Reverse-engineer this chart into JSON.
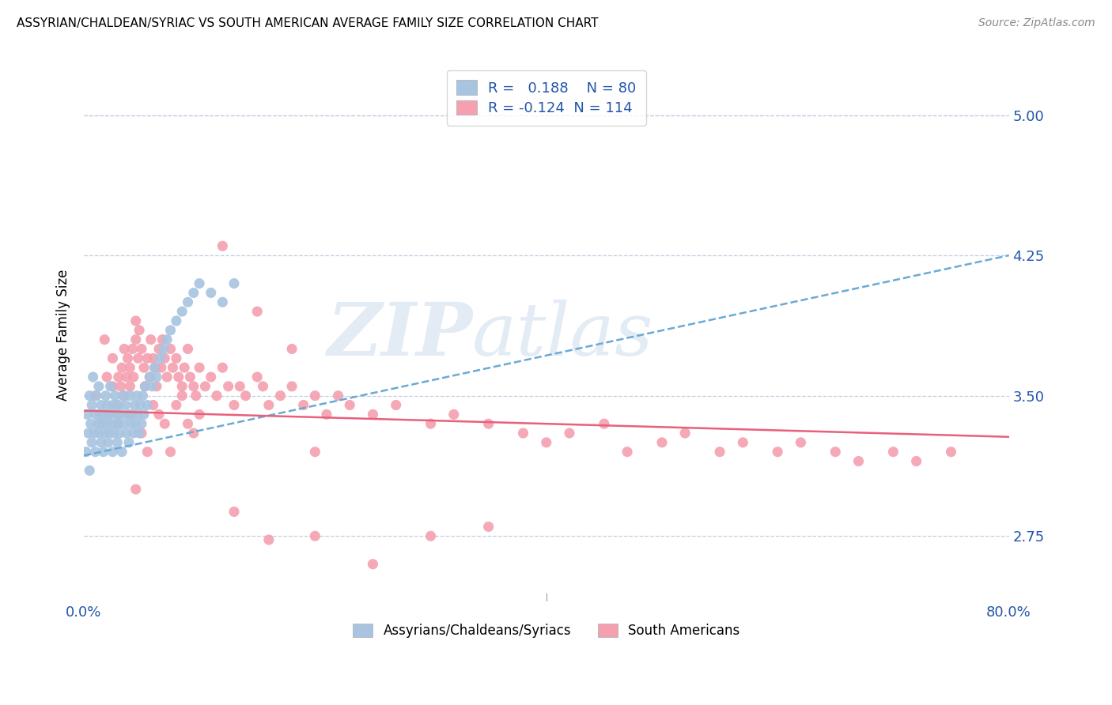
{
  "title": "ASSYRIAN/CHALDEAN/SYRIAC VS SOUTH AMERICAN AVERAGE FAMILY SIZE CORRELATION CHART",
  "source": "Source: ZipAtlas.com",
  "ylabel": "Average Family Size",
  "watermark": "ZIPatlas",
  "legend1_label": "Assyrians/Chaldeans/Syriacs",
  "legend2_label": "South Americans",
  "r1": 0.188,
  "n1": 80,
  "r2": -0.124,
  "n2": 114,
  "blue_color": "#a8c4e0",
  "pink_color": "#f4a0b0",
  "blue_line_color": "#6aaad4",
  "pink_line_color": "#e8607a",
  "right_yticks": [
    2.75,
    3.5,
    4.25,
    5.0
  ],
  "ylim": [
    2.4,
    5.25
  ],
  "xlim": [
    0.0,
    0.8
  ],
  "blue_trend_x": [
    0.0,
    0.8
  ],
  "blue_trend_y": [
    3.18,
    4.25
  ],
  "pink_trend_x": [
    0.0,
    0.8
  ],
  "pink_trend_y": [
    3.42,
    3.28
  ],
  "blue_scatter_x": [
    0.002,
    0.003,
    0.004,
    0.005,
    0.005,
    0.006,
    0.007,
    0.007,
    0.008,
    0.009,
    0.01,
    0.01,
    0.011,
    0.012,
    0.013,
    0.013,
    0.014,
    0.015,
    0.015,
    0.016,
    0.017,
    0.017,
    0.018,
    0.019,
    0.02,
    0.02,
    0.021,
    0.022,
    0.022,
    0.023,
    0.024,
    0.025,
    0.025,
    0.026,
    0.027,
    0.028,
    0.028,
    0.029,
    0.03,
    0.03,
    0.031,
    0.032,
    0.033,
    0.034,
    0.035,
    0.036,
    0.037,
    0.038,
    0.039,
    0.04,
    0.041,
    0.042,
    0.043,
    0.044,
    0.045,
    0.046,
    0.047,
    0.048,
    0.049,
    0.05,
    0.051,
    0.052,
    0.053,
    0.055,
    0.057,
    0.059,
    0.061,
    0.063,
    0.066,
    0.069,
    0.072,
    0.075,
    0.08,
    0.085,
    0.09,
    0.095,
    0.1,
    0.11,
    0.12,
    0.13
  ],
  "blue_scatter_y": [
    3.2,
    3.4,
    3.3,
    3.1,
    3.5,
    3.35,
    3.25,
    3.45,
    3.6,
    3.3,
    3.4,
    3.2,
    3.5,
    3.35,
    3.55,
    3.3,
    3.4,
    3.25,
    3.45,
    3.35,
    3.2,
    3.4,
    3.3,
    3.5,
    3.35,
    3.45,
    3.25,
    3.4,
    3.3,
    3.55,
    3.35,
    3.2,
    3.45,
    3.3,
    3.5,
    3.35,
    3.4,
    3.25,
    3.45,
    3.35,
    3.3,
    3.4,
    3.2,
    3.5,
    3.35,
    3.45,
    3.3,
    3.4,
    3.25,
    3.5,
    3.35,
    3.4,
    3.3,
    3.45,
    3.35,
    3.5,
    3.4,
    3.3,
    3.45,
    3.35,
    3.5,
    3.4,
    3.55,
    3.45,
    3.6,
    3.55,
    3.65,
    3.6,
    3.7,
    3.75,
    3.8,
    3.85,
    3.9,
    3.95,
    4.0,
    4.05,
    4.1,
    4.05,
    4.0,
    4.1
  ],
  "pink_scatter_x": [
    0.01,
    0.015,
    0.018,
    0.02,
    0.022,
    0.025,
    0.025,
    0.028,
    0.03,
    0.03,
    0.032,
    0.033,
    0.035,
    0.035,
    0.037,
    0.038,
    0.04,
    0.04,
    0.042,
    0.043,
    0.045,
    0.045,
    0.047,
    0.048,
    0.05,
    0.052,
    0.053,
    0.055,
    0.057,
    0.058,
    0.06,
    0.062,
    0.063,
    0.065,
    0.067,
    0.068,
    0.07,
    0.072,
    0.075,
    0.077,
    0.08,
    0.082,
    0.085,
    0.087,
    0.09,
    0.092,
    0.095,
    0.097,
    0.1,
    0.105,
    0.11,
    0.115,
    0.12,
    0.125,
    0.13,
    0.135,
    0.14,
    0.15,
    0.155,
    0.16,
    0.17,
    0.18,
    0.19,
    0.2,
    0.21,
    0.22,
    0.23,
    0.25,
    0.27,
    0.3,
    0.32,
    0.35,
    0.38,
    0.4,
    0.42,
    0.45,
    0.47,
    0.5,
    0.52,
    0.55,
    0.57,
    0.6,
    0.62,
    0.65,
    0.67,
    0.7,
    0.72,
    0.75,
    0.03,
    0.04,
    0.05,
    0.06,
    0.07,
    0.08,
    0.09,
    0.1,
    0.12,
    0.15,
    0.18,
    0.2,
    0.25,
    0.3,
    0.2,
    0.35,
    0.13,
    0.16,
    0.045,
    0.055,
    0.065,
    0.075,
    0.085,
    0.095
  ],
  "pink_scatter_y": [
    3.5,
    3.35,
    3.8,
    3.6,
    3.4,
    3.55,
    3.7,
    3.45,
    3.6,
    3.4,
    3.55,
    3.65,
    3.5,
    3.75,
    3.6,
    3.7,
    3.55,
    3.65,
    3.75,
    3.6,
    3.8,
    3.9,
    3.7,
    3.85,
    3.75,
    3.65,
    3.55,
    3.7,
    3.6,
    3.8,
    3.7,
    3.65,
    3.55,
    3.75,
    3.65,
    3.8,
    3.7,
    3.6,
    3.75,
    3.65,
    3.7,
    3.6,
    3.55,
    3.65,
    3.75,
    3.6,
    3.55,
    3.5,
    3.65,
    3.55,
    3.6,
    3.5,
    3.65,
    3.55,
    3.45,
    3.55,
    3.5,
    3.6,
    3.55,
    3.45,
    3.5,
    3.55,
    3.45,
    3.5,
    3.4,
    3.5,
    3.45,
    3.4,
    3.45,
    3.35,
    3.4,
    3.35,
    3.3,
    3.25,
    3.3,
    3.35,
    3.2,
    3.25,
    3.3,
    3.2,
    3.25,
    3.2,
    3.25,
    3.2,
    3.15,
    3.2,
    3.15,
    3.2,
    3.35,
    3.4,
    3.3,
    3.45,
    3.35,
    3.45,
    3.35,
    3.4,
    4.3,
    3.95,
    3.75,
    2.75,
    2.6,
    2.75,
    3.2,
    2.8,
    2.88,
    2.73,
    3.0,
    3.2,
    3.4,
    3.2,
    3.5,
    3.3
  ]
}
